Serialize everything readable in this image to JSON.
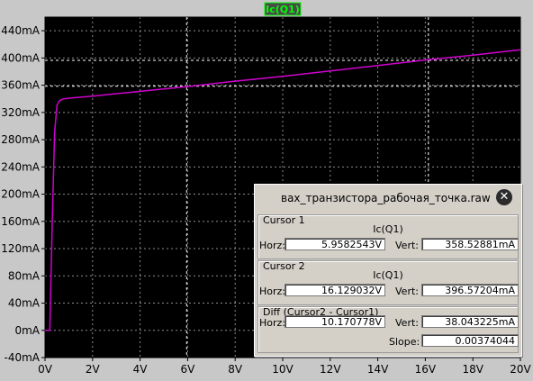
{
  "plot": {
    "trace_label": "Ic(Q1)",
    "background": "#000000",
    "grid_color": "#8c8c8c",
    "trace_color": "#d000d0",
    "trace_label_color": "#00ff00",
    "cursor_color": "#ffffff",
    "x_ticks": [
      "0V",
      "2V",
      "4V",
      "6V",
      "8V",
      "10V",
      "12V",
      "14V",
      "16V",
      "18V",
      "20V"
    ],
    "y_ticks": [
      "-40mA",
      "0mA",
      "40mA",
      "80mA",
      "120mA",
      "160mA",
      "200mA",
      "240mA",
      "280mA",
      "320mA",
      "360mA",
      "400mA",
      "440mA"
    ]
  },
  "chart_data": {
    "type": "line",
    "xlim": [
      0,
      20
    ],
    "ylim": [
      -40,
      460
    ],
    "series": [
      {
        "name": "Ic(Q1)",
        "x": [
          0,
          0.2,
          0.3,
          0.4,
          0.5,
          0.6,
          0.7,
          0.8,
          1.0,
          2,
          4,
          6,
          8,
          10,
          12,
          14,
          16,
          18,
          20
        ],
        "y": [
          0,
          0,
          150,
          290,
          330,
          337,
          339,
          340,
          341,
          344,
          351,
          358,
          366,
          373,
          381,
          389,
          397,
          404,
          412
        ]
      }
    ],
    "cursors": [
      {
        "x": 5.9582543,
        "y": 358.52881
      },
      {
        "x": 16.129032,
        "y": 396.57204
      }
    ]
  },
  "dialog": {
    "title": "вах_транзистора_рабочая_точка.raw",
    "close_glyph": "✕",
    "cursor1": {
      "title": "Cursor 1",
      "trace": "Ic(Q1)",
      "horz_label": "Horz:",
      "horz_value": "5.9582543V",
      "vert_label": "Vert:",
      "vert_value": "358.52881mA"
    },
    "cursor2": {
      "title": "Cursor 2",
      "trace": "Ic(Q1)",
      "horz_label": "Horz:",
      "horz_value": "16.129032V",
      "vert_label": "Vert:",
      "vert_value": "396.57204mA"
    },
    "diff": {
      "title": "Diff (Cursor2 - Cursor1)",
      "horz_label": "Horz:",
      "horz_value": "10.170778V",
      "vert_label": "Vert:",
      "vert_value": "38.043225mA",
      "slope_label": "Slope:",
      "slope_value": "0.00374044"
    }
  }
}
